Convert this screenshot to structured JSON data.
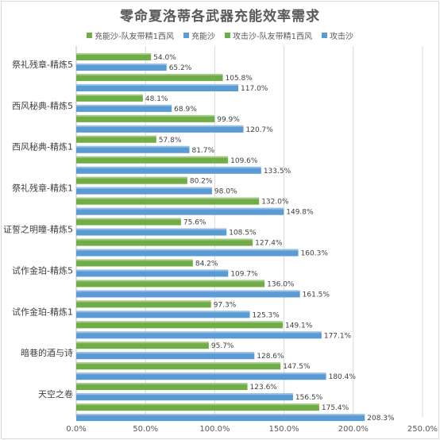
{
  "chart_data": {
    "type": "bar",
    "orientation": "horizontal",
    "title": "零命夏洛蒂各武器充能效率需求",
    "categories": [
      "祭礼残章-精炼5",
      "西风秘典-精炼5",
      "西风秘典-精炼1",
      "祭礼残章-精炼1",
      "证誓之明瞳-精炼5",
      "试作金珀-精炼5",
      "试作金珀-精炼1",
      "暗巷的酒与诗",
      "天空之卷"
    ],
    "series": [
      {
        "name": "充能沙-队友带精1西风",
        "color": "#70ad47",
        "values": [
          54.0,
          48.1,
          57.8,
          80.2,
          75.6,
          84.2,
          97.3,
          95.7,
          123.6
        ],
        "labels": [
          "54.0%",
          "48.1%",
          "57.8%",
          "80.2%",
          "75.6%",
          "84.2%",
          "97.3%",
          "95.7%",
          "123.6%"
        ]
      },
      {
        "name": "充能沙",
        "color": "#5b9bd5",
        "values": [
          65.2,
          68.9,
          81.7,
          98.0,
          108.5,
          109.7,
          125.3,
          128.6,
          156.5
        ],
        "labels": [
          "65.2%",
          "68.9%",
          "81.7%",
          "98.0%",
          "108.5%",
          "109.7%",
          "125.3%",
          "128.6%",
          "156.5%"
        ]
      },
      {
        "name": "攻击沙-队友带精1西风",
        "color": "#70ad47",
        "values": [
          105.8,
          99.9,
          109.6,
          132.0,
          127.4,
          136.0,
          149.1,
          147.5,
          175.4
        ],
        "labels": [
          "105.8%",
          "99.9%",
          "109.6%",
          "132.0%",
          "127.4%",
          "136.0%",
          "149.1%",
          "147.5%",
          "175.4%"
        ]
      },
      {
        "name": "攻击沙",
        "color": "#5b9bd5",
        "values": [
          117.0,
          120.7,
          133.5,
          149.8,
          160.3,
          161.5,
          177.1,
          180.4,
          208.3
        ],
        "labels": [
          "117.0%",
          "120.7%",
          "133.5%",
          "149.8%",
          "160.3%",
          "161.5%",
          "177.1%",
          "180.4%",
          "208.3%"
        ]
      }
    ],
    "xlim": [
      0,
      250
    ],
    "xticks": [
      0,
      50,
      100,
      150,
      200,
      250
    ],
    "xtick_labels": [
      "0.0%",
      "50.0%",
      "100.0%",
      "150.0%",
      "200.0%",
      "250.0%"
    ],
    "grid": "vertical",
    "legend_position": "top"
  }
}
